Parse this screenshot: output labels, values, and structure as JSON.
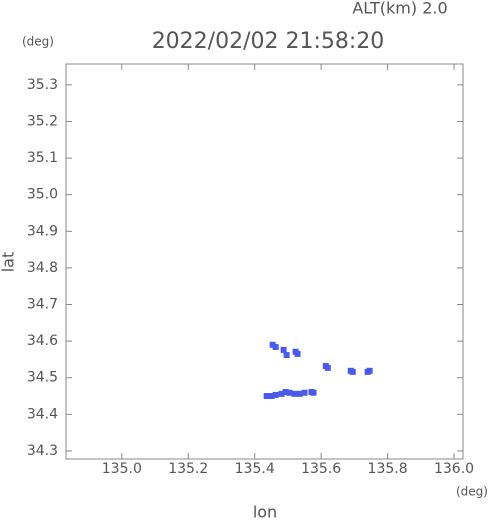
{
  "chart_data": {
    "type": "scatter",
    "title": "2022/02/02 21:58:20",
    "subtitle": "ALT(km) 2.0",
    "y_unit": "(deg)",
    "x_unit": "(deg)",
    "xlabel": "lon",
    "ylabel": "lat",
    "color": "#4a5ae8",
    "x": [
      135.454,
      135.463,
      135.487,
      135.496,
      135.523,
      135.529,
      135.614,
      135.62,
      135.689,
      135.695,
      135.74,
      135.746,
      135.436,
      135.451,
      135.463,
      135.481,
      135.493,
      135.505,
      135.52,
      135.535,
      135.55,
      135.571,
      135.577
    ],
    "values": [
      34.59,
      34.584,
      34.576,
      34.562,
      34.571,
      34.565,
      34.532,
      34.527,
      34.519,
      34.516,
      34.516,
      34.519,
      34.45,
      34.45,
      34.453,
      34.456,
      34.461,
      34.459,
      34.456,
      34.456,
      34.459,
      34.461,
      34.459
    ],
    "xlim": [
      134.832,
      136.027
    ],
    "ylim": [
      34.278,
      35.357
    ],
    "xticks": [
      {
        "value": 135,
        "label": "135.0"
      },
      135.2,
      135.4,
      135.6,
      135.8,
      {
        "value": 136,
        "label": "136.0"
      }
    ],
    "yticks": [
      34.3,
      34.4,
      34.5,
      34.6,
      34.7,
      34.8,
      34.9,
      {
        "value": 35,
        "label": "35.0"
      },
      35.1,
      35.2,
      35.3
    ]
  }
}
